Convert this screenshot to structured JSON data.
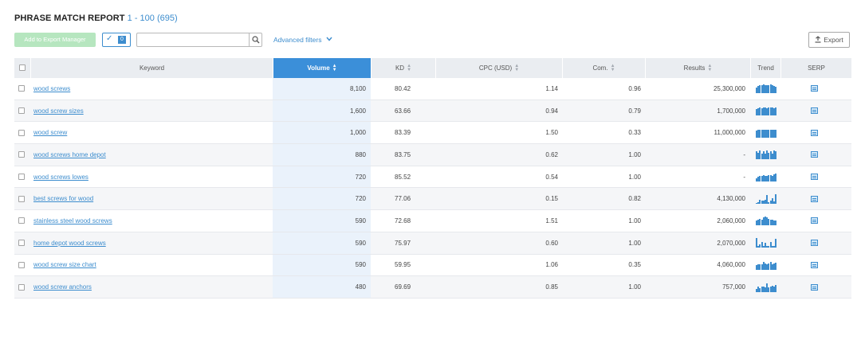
{
  "header": {
    "title": "PHRASE MATCH REPORT",
    "range": "1 - 100 (695)"
  },
  "toolbar": {
    "add_export_label": "Add to Export Manager",
    "selected_count": "0",
    "search_placeholder": "",
    "advanced_filters_label": "Advanced filters",
    "export_label": "Export"
  },
  "table": {
    "columns": {
      "keyword": "Keyword",
      "volume": "Volume",
      "kd": "KD",
      "cpc": "CPC (USD)",
      "com": "Com.",
      "results": "Results",
      "trend": "Trend",
      "serp": "SERP"
    },
    "rows": [
      {
        "keyword": "wood screws",
        "volume": "8,100",
        "kd": "80.42",
        "cpc": "1.14",
        "com": "0.96",
        "results": "25,300,000",
        "trend": [
          0.55,
          0.75,
          0.85,
          0.8,
          0.9,
          0.85,
          0.8,
          0.85,
          0.9,
          0.8,
          0.75,
          0.7
        ]
      },
      {
        "keyword": "wood screw sizes",
        "volume": "1,600",
        "kd": "63.66",
        "cpc": "0.94",
        "com": "0.79",
        "results": "1,700,000",
        "trend": [
          0.7,
          0.75,
          0.8,
          0.75,
          0.8,
          0.8,
          0.75,
          0.8,
          0.85,
          0.8,
          0.75,
          0.8
        ]
      },
      {
        "keyword": "wood screw",
        "volume": "1,000",
        "kd": "83.39",
        "cpc": "1.50",
        "com": "0.33",
        "results": "11,000,000",
        "trend": [
          0.75,
          0.8,
          0.85,
          0.85,
          0.85,
          0.85,
          0.85,
          0.85,
          0.85,
          0.85,
          0.85,
          0.85
        ]
      },
      {
        "keyword": "wood screws home depot",
        "volume": "880",
        "kd": "83.75",
        "cpc": "0.62",
        "com": "1.00",
        "results": "-",
        "trend": [
          0.85,
          0.65,
          0.9,
          0.6,
          0.85,
          0.6,
          0.9,
          0.7,
          0.85,
          0.6,
          0.9,
          0.8
        ]
      },
      {
        "keyword": "wood screws lowes",
        "volume": "720",
        "kd": "85.52",
        "cpc": "0.54",
        "com": "1.00",
        "results": "-",
        "trend": [
          0.35,
          0.5,
          0.6,
          0.55,
          0.65,
          0.6,
          0.6,
          0.65,
          0.7,
          0.6,
          0.75,
          0.8
        ]
      },
      {
        "keyword": "best screws for wood",
        "volume": "720",
        "kd": "77.06",
        "cpc": "0.15",
        "com": "0.82",
        "results": "4,130,000",
        "trend": [
          0.1,
          0.2,
          0.4,
          0.3,
          0.35,
          0.45,
          0.9,
          0.15,
          0.3,
          0.6,
          0.25,
          1.0
        ]
      },
      {
        "keyword": "stainless steel wood screws",
        "volume": "590",
        "kd": "72.68",
        "cpc": "1.51",
        "com": "1.00",
        "results": "2,060,000",
        "trend": [
          0.5,
          0.55,
          0.7,
          0.6,
          0.8,
          0.9,
          0.85,
          0.7,
          0.6,
          0.55,
          0.5,
          0.5
        ]
      },
      {
        "keyword": "home depot wood screws",
        "volume": "590",
        "kd": "75.97",
        "cpc": "0.60",
        "com": "1.00",
        "results": "2,070,000",
        "trend": [
          1.0,
          0.15,
          0.3,
          0.6,
          0.2,
          0.5,
          0.2,
          0.15,
          0.55,
          0.15,
          0.15,
          0.95
        ]
      },
      {
        "keyword": "wood screw size chart",
        "volume": "590",
        "kd": "59.95",
        "cpc": "1.06",
        "com": "0.35",
        "results": "4,060,000",
        "trend": [
          0.5,
          0.55,
          0.6,
          0.6,
          0.8,
          0.65,
          0.6,
          0.7,
          0.85,
          0.6,
          0.65,
          0.75
        ]
      },
      {
        "keyword": "wood screw anchors",
        "volume": "480",
        "kd": "69.69",
        "cpc": "0.85",
        "com": "1.00",
        "results": "757,000",
        "trend": [
          0.35,
          0.55,
          0.4,
          0.6,
          0.55,
          0.5,
          0.9,
          0.5,
          0.6,
          0.7,
          0.6,
          0.75
        ]
      }
    ]
  },
  "colors": {
    "accent": "#3d8dce",
    "active_header": "#3b8fd9",
    "header_bg": "#eaedf1",
    "export_btn_bg": "#b6e6bf"
  }
}
